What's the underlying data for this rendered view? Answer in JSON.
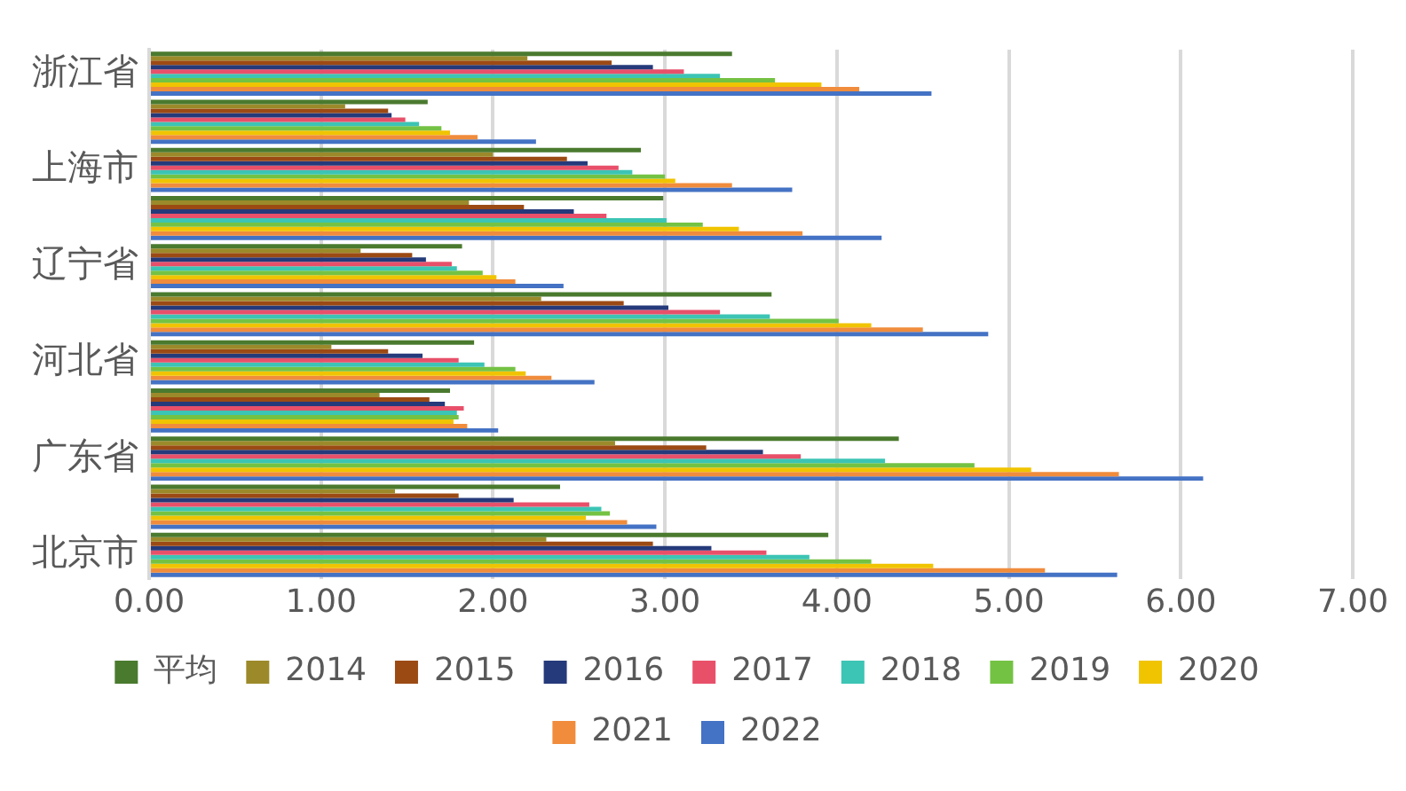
{
  "chart_data": {
    "type": "bar",
    "orientation": "horizontal",
    "categories": [
      "浙江省",
      null,
      "上海市",
      null,
      "辽宁省",
      null,
      "河北省",
      null,
      "广东省",
      null,
      "北京市"
    ],
    "series": [
      {
        "name": "平均",
        "color": "#4a7a2e",
        "values": [
          3.39,
          1.62,
          2.86,
          2.99,
          1.82,
          3.62,
          1.89,
          1.75,
          4.36,
          2.39,
          3.95
        ]
      },
      {
        "name": "2014",
        "color": "#9c8a2a",
        "values": [
          2.2,
          1.14,
          2.0,
          1.86,
          1.23,
          2.28,
          1.06,
          1.34,
          2.71,
          1.43,
          2.31
        ]
      },
      {
        "name": "2015",
        "color": "#9c4a14",
        "values": [
          2.69,
          1.39,
          2.43,
          2.18,
          1.53,
          2.76,
          1.39,
          1.63,
          3.24,
          1.8,
          2.93
        ]
      },
      {
        "name": "2016",
        "color": "#253a7a",
        "values": [
          2.93,
          1.41,
          2.55,
          2.47,
          1.61,
          3.02,
          1.59,
          1.72,
          3.57,
          2.12,
          3.27
        ]
      },
      {
        "name": "2017",
        "color": "#e8506a",
        "values": [
          3.11,
          1.49,
          2.73,
          2.66,
          1.76,
          3.32,
          1.8,
          1.83,
          3.79,
          2.56,
          3.59
        ]
      },
      {
        "name": "2018",
        "color": "#3cc4b4",
        "values": [
          3.32,
          1.57,
          2.81,
          3.01,
          1.79,
          3.61,
          1.95,
          1.79,
          4.28,
          2.63,
          3.84
        ]
      },
      {
        "name": "2019",
        "color": "#74c244",
        "values": [
          3.64,
          1.7,
          3.0,
          3.22,
          1.94,
          4.01,
          2.13,
          1.8,
          4.8,
          2.68,
          4.2
        ]
      },
      {
        "name": "2020",
        "color": "#f0c400",
        "values": [
          3.91,
          1.75,
          3.06,
          3.43,
          2.02,
          4.2,
          2.19,
          1.77,
          5.13,
          2.54,
          4.56
        ]
      },
      {
        "name": "2021",
        "color": "#f08c3c",
        "values": [
          4.13,
          1.91,
          3.39,
          3.8,
          2.13,
          4.5,
          2.34,
          1.85,
          5.64,
          2.78,
          5.21
        ]
      },
      {
        "name": "2022",
        "color": "#4472c4",
        "values": [
          4.55,
          2.25,
          3.74,
          4.26,
          2.41,
          4.88,
          2.59,
          2.03,
          6.13,
          2.95,
          5.63
        ]
      }
    ],
    "xlim": [
      0,
      7
    ],
    "xticks": [
      {
        "value": 0,
        "label": "0.00"
      },
      {
        "value": 1,
        "label": "1.00"
      },
      {
        "value": 2,
        "label": "2.00"
      },
      {
        "value": 3,
        "label": "3.00"
      },
      {
        "value": 4,
        "label": "4.00"
      },
      {
        "value": 5,
        "label": "5.00"
      },
      {
        "value": 6,
        "label": "6.00"
      },
      {
        "value": 7,
        "label": "7.00"
      }
    ],
    "grid": "x",
    "legend": "bottom"
  }
}
